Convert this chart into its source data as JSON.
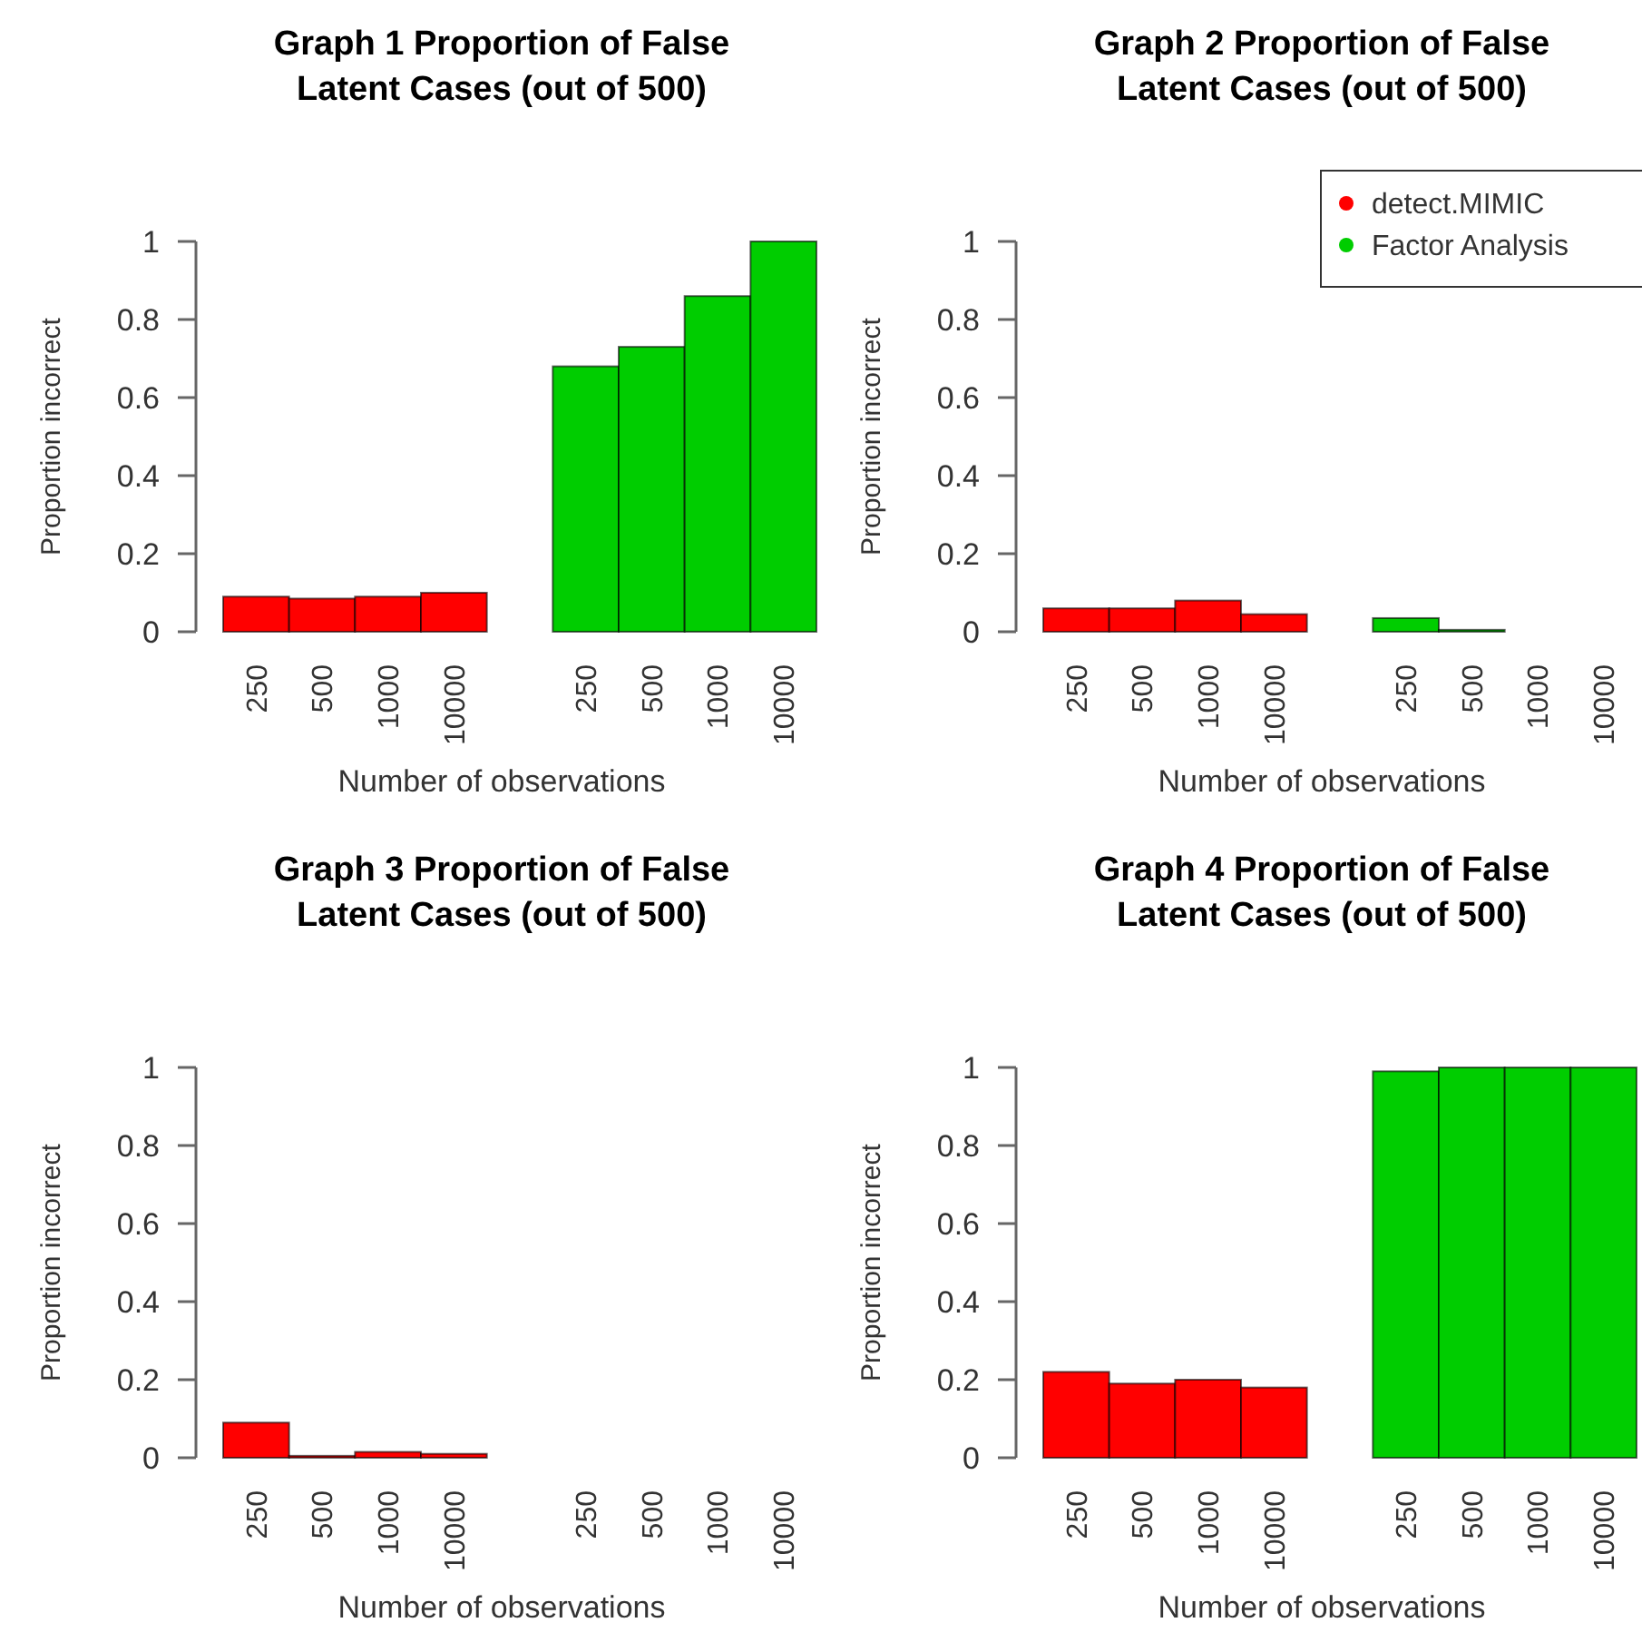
{
  "chart_data": [
    {
      "type": "bar",
      "title": "Graph 1 Proportion of False Latent Cases (out of 500)",
      "xlabel": "Number of observations",
      "ylabel": "Proportion incorrect",
      "categories": [
        "250",
        "500",
        "1000",
        "10000",
        "250",
        "500",
        "1000",
        "10000"
      ],
      "ylim": [
        0,
        1
      ],
      "yticks": [
        0,
        0.2,
        0.4,
        0.6,
        0.8,
        1
      ],
      "legend": false,
      "series": [
        {
          "color": "#ff0000",
          "values": [
            0.09,
            0.085,
            0.09,
            0.1,
            null,
            null,
            null,
            null
          ]
        },
        {
          "color": "#00cd00",
          "values": [
            null,
            null,
            null,
            null,
            0.68,
            0.73,
            0.86,
            1
          ]
        }
      ]
    },
    {
      "type": "bar",
      "title": "Graph 2 Proportion of False Latent Cases (out of 500)",
      "xlabel": "Number of observations",
      "ylabel": "Proportion incorrect",
      "categories": [
        "250",
        "500",
        "1000",
        "10000",
        "250",
        "500",
        "1000",
        "10000"
      ],
      "ylim": [
        0,
        1
      ],
      "yticks": [
        0,
        0.2,
        0.4,
        0.6,
        0.8,
        1
      ],
      "legend": "top right",
      "series": [
        {
          "name": "detect.MIMIC",
          "color": "#ff0000",
          "values": [
            0.06,
            0.06,
            0.08,
            0.045,
            null,
            null,
            null,
            null
          ]
        },
        {
          "name": "Factor Analysis",
          "color": "#00cd00",
          "values": [
            null,
            null,
            null,
            null,
            0.035,
            0.005,
            0,
            0
          ]
        }
      ]
    },
    {
      "type": "bar",
      "title": "Graph 3 Proportion of False Latent Cases (out of 500)",
      "xlabel": "Number of observations",
      "ylabel": "Proportion incorrect",
      "categories": [
        "250",
        "500",
        "1000",
        "10000",
        "250",
        "500",
        "1000",
        "10000"
      ],
      "ylim": [
        0,
        1
      ],
      "yticks": [
        0,
        0.2,
        0.4,
        0.6,
        0.8,
        1
      ],
      "legend": false,
      "series": [
        {
          "color": "#ff0000",
          "values": [
            0.09,
            0.005,
            0.015,
            0.01,
            null,
            null,
            null,
            null
          ]
        },
        {
          "color": "#00cd00",
          "values": [
            null,
            null,
            null,
            null,
            0,
            0,
            0,
            0
          ]
        }
      ]
    },
    {
      "type": "bar",
      "title": "Graph 4 Proportion of False Latent Cases (out of 500)",
      "xlabel": "Number of observations",
      "ylabel": "Proportion incorrect",
      "categories": [
        "250",
        "500",
        "1000",
        "10000",
        "250",
        "500",
        "1000",
        "10000"
      ],
      "ylim": [
        0,
        1
      ],
      "yticks": [
        0,
        0.2,
        0.4,
        0.6,
        0.8,
        1
      ],
      "legend": false,
      "series": [
        {
          "color": "#ff0000",
          "values": [
            0.22,
            0.19,
            0.2,
            0.18,
            null,
            null,
            null,
            null
          ]
        },
        {
          "color": "#00cd00",
          "values": [
            null,
            null,
            null,
            null,
            0.99,
            1,
            1,
            1
          ]
        }
      ]
    }
  ]
}
